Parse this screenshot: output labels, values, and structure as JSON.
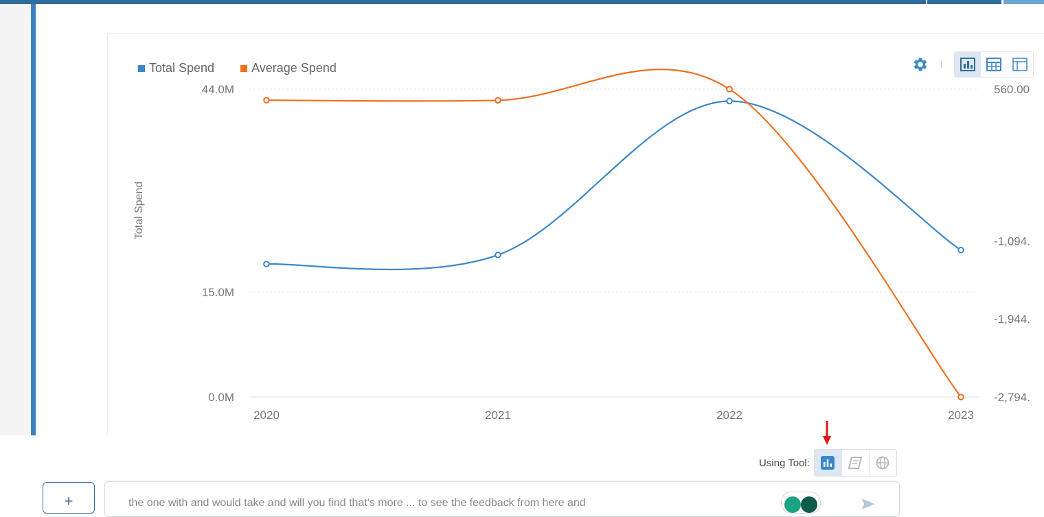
{
  "app": {
    "colors": {
      "top_bar": "#2f6c99",
      "left_accent": "#3b82c4",
      "total_spend": "#3c87c8",
      "average_spend": "#f07020",
      "annotation_arrow": "#e8120c"
    }
  },
  "chart_toolbar": {
    "settings_icon": "gear-icon",
    "views": [
      {
        "name": "chart-view",
        "icon": "bar-chart-icon",
        "active": true
      },
      {
        "name": "table-view",
        "icon": "grid-table-icon",
        "active": false
      },
      {
        "name": "pivot-view",
        "icon": "layout-table-icon",
        "active": false
      }
    ]
  },
  "chart_data": {
    "type": "line",
    "title": "",
    "x": [
      "2020",
      "2021",
      "2022",
      "2023"
    ],
    "series": [
      {
        "name": "Total Spend",
        "axis": "left",
        "values": [
          19.0,
          20.3,
          42.3,
          21.0
        ],
        "color": "#3c87c8"
      },
      {
        "name": "Average Spend",
        "axis": "right",
        "values": [
          440,
          438,
          560,
          -2794
        ],
        "color": "#f07020"
      }
    ],
    "ylabel": "Total Spend",
    "y_left": {
      "ticks": [
        {
          "value": 44,
          "label": "44.0M"
        },
        {
          "value": 15,
          "label": "15.0M"
        },
        {
          "value": 0,
          "label": "0.0M"
        }
      ],
      "range": [
        0,
        44
      ]
    },
    "y_right": {
      "ticks": [
        {
          "value": 560,
          "label": "560.00"
        },
        {
          "value": -1094,
          "label": "-1,094."
        },
        {
          "value": -1944,
          "label": "-1,944."
        },
        {
          "value": -2794,
          "label": "-2,794."
        }
      ],
      "range": [
        -2794,
        560
      ]
    },
    "grid": true,
    "legend_position": "top-left",
    "curve": "smooth"
  },
  "using_tool": {
    "label": "Using Tool:",
    "tools": [
      {
        "name": "chart-tool",
        "icon": "bar-chart-icon",
        "active": true
      },
      {
        "name": "document-tool",
        "icon": "book-icon",
        "active": false
      },
      {
        "name": "web-tool",
        "icon": "globe-icon",
        "active": false
      }
    ]
  },
  "composer": {
    "new_button_icon": "plus-icon",
    "input_text": "the one with and would take and will you find that's more ... to see the feedback from here and",
    "send_icon": "send-icon"
  }
}
